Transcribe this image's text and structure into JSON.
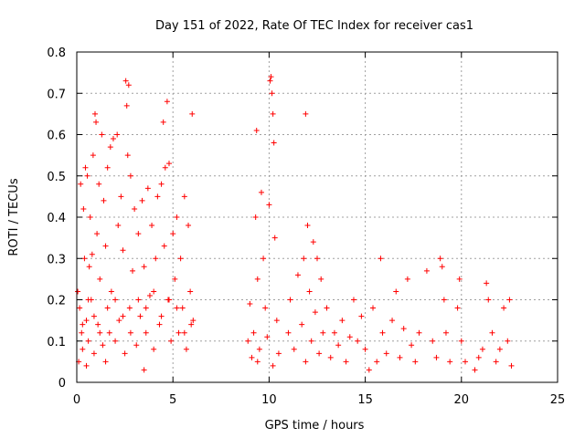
{
  "chart_data": {
    "type": "scatter",
    "title": "Day 151 of 2022, Rate Of TEC Index for receiver cas1",
    "xlabel": "GPS time / hours",
    "ylabel": "ROTI / TECUs",
    "xlim": [
      0,
      25
    ],
    "ylim": [
      0,
      0.8
    ],
    "xticks": [
      "0",
      "5",
      "10",
      "15",
      "20",
      "25"
    ],
    "yticks": [
      "0",
      "0.1",
      "0.2",
      "0.3",
      "0.4",
      "0.5",
      "0.6",
      "0.7",
      "0.8"
    ],
    "xtick_values": [
      0,
      5,
      10,
      15,
      20,
      25
    ],
    "ytick_values": [
      0,
      0.1,
      0.2,
      0.3,
      0.4,
      0.5,
      0.6,
      0.7,
      0.8
    ],
    "grid": true,
    "marker": "+",
    "series": [
      {
        "color": "#ff0000",
        "points": [
          [
            0.05,
            0.22
          ],
          [
            0.1,
            0.05
          ],
          [
            0.15,
            0.18
          ],
          [
            0.2,
            0.48
          ],
          [
            0.25,
            0.12
          ],
          [
            0.3,
            0.08
          ],
          [
            0.35,
            0.42
          ],
          [
            0.4,
            0.3
          ],
          [
            0.45,
            0.52
          ],
          [
            0.5,
            0.15
          ],
          [
            0.55,
            0.5
          ],
          [
            0.6,
            0.1
          ],
          [
            0.65,
            0.28
          ],
          [
            0.7,
            0.4
          ],
          [
            0.75,
            0.2
          ],
          [
            0.8,
            0.31
          ],
          [
            0.85,
            0.55
          ],
          [
            0.9,
            0.07
          ],
          [
            0.95,
            0.65
          ],
          [
            1.0,
            0.63
          ],
          [
            1.05,
            0.36
          ],
          [
            1.1,
            0.14
          ],
          [
            1.15,
            0.48
          ],
          [
            1.2,
            0.25
          ],
          [
            1.3,
            0.6
          ],
          [
            1.35,
            0.09
          ],
          [
            1.4,
            0.44
          ],
          [
            1.5,
            0.33
          ],
          [
            1.6,
            0.52
          ],
          [
            1.7,
            0.12
          ],
          [
            1.75,
            0.57
          ],
          [
            1.8,
            0.22
          ],
          [
            1.9,
            0.59
          ],
          [
            2.0,
            0.1
          ],
          [
            2.1,
            0.6
          ],
          [
            2.15,
            0.38
          ],
          [
            2.2,
            0.15
          ],
          [
            2.3,
            0.45
          ],
          [
            2.4,
            0.32
          ],
          [
            2.5,
            0.07
          ],
          [
            2.55,
            0.73
          ],
          [
            2.6,
            0.67
          ],
          [
            2.65,
            0.55
          ],
          [
            2.7,
            0.72
          ],
          [
            2.75,
            0.18
          ],
          [
            2.8,
            0.5
          ],
          [
            2.9,
            0.27
          ],
          [
            3.0,
            0.42
          ],
          [
            3.1,
            0.09
          ],
          [
            3.2,
            0.36
          ],
          [
            3.3,
            0.16
          ],
          [
            3.4,
            0.44
          ],
          [
            3.5,
            0.28
          ],
          [
            3.6,
            0.12
          ],
          [
            3.7,
            0.47
          ],
          [
            3.8,
            0.21
          ],
          [
            3.9,
            0.38
          ],
          [
            4.0,
            0.08
          ],
          [
            4.1,
            0.3
          ],
          [
            4.2,
            0.45
          ],
          [
            4.3,
            0.14
          ],
          [
            4.4,
            0.48
          ],
          [
            4.5,
            0.63
          ],
          [
            4.55,
            0.33
          ],
          [
            4.6,
            0.52
          ],
          [
            4.7,
            0.68
          ],
          [
            4.75,
            0.2
          ],
          [
            4.8,
            0.53
          ],
          [
            4.9,
            0.1
          ],
          [
            5.0,
            0.36
          ],
          [
            5.1,
            0.25
          ],
          [
            5.2,
            0.4
          ],
          [
            5.3,
            0.12
          ],
          [
            5.4,
            0.3
          ],
          [
            5.5,
            0.18
          ],
          [
            5.6,
            0.45
          ],
          [
            5.7,
            0.08
          ],
          [
            5.8,
            0.38
          ],
          [
            5.9,
            0.22
          ],
          [
            6.0,
            0.65
          ],
          [
            6.05,
            0.15
          ],
          [
            0.3,
            0.14
          ],
          [
            0.6,
            0.2
          ],
          [
            0.9,
            0.16
          ],
          [
            1.2,
            0.12
          ],
          [
            1.6,
            0.18
          ],
          [
            2.0,
            0.2
          ],
          [
            2.4,
            0.16
          ],
          [
            2.8,
            0.12
          ],
          [
            3.2,
            0.2
          ],
          [
            3.6,
            0.18
          ],
          [
            4.0,
            0.22
          ],
          [
            4.4,
            0.16
          ],
          [
            4.8,
            0.2
          ],
          [
            5.2,
            0.18
          ],
          [
            5.6,
            0.12
          ],
          [
            5.95,
            0.14
          ],
          [
            0.5,
            0.04
          ],
          [
            1.5,
            0.05
          ],
          [
            3.5,
            0.03
          ],
          [
            8.9,
            0.1
          ],
          [
            9.0,
            0.19
          ],
          [
            9.1,
            0.06
          ],
          [
            9.2,
            0.12
          ],
          [
            9.3,
            0.4
          ],
          [
            9.35,
            0.61
          ],
          [
            9.4,
            0.25
          ],
          [
            9.5,
            0.08
          ],
          [
            9.6,
            0.46
          ],
          [
            9.7,
            0.3
          ],
          [
            9.8,
            0.18
          ],
          [
            9.9,
            0.11
          ],
          [
            10.0,
            0.43
          ],
          [
            10.05,
            0.73
          ],
          [
            10.1,
            0.74
          ],
          [
            10.15,
            0.7
          ],
          [
            10.2,
            0.65
          ],
          [
            10.25,
            0.58
          ],
          [
            10.3,
            0.35
          ],
          [
            10.4,
            0.15
          ],
          [
            10.5,
            0.07
          ],
          [
            9.4,
            0.05
          ],
          [
            10.2,
            0.04
          ],
          [
            11.9,
            0.65
          ],
          [
            11.0,
            0.12
          ],
          [
            11.1,
            0.2
          ],
          [
            11.3,
            0.08
          ],
          [
            11.5,
            0.26
          ],
          [
            11.7,
            0.14
          ],
          [
            11.8,
            0.3
          ],
          [
            11.9,
            0.05
          ],
          [
            12.0,
            0.38
          ],
          [
            12.1,
            0.22
          ],
          [
            12.2,
            0.1
          ],
          [
            12.3,
            0.34
          ],
          [
            12.4,
            0.17
          ],
          [
            12.5,
            0.3
          ],
          [
            12.6,
            0.07
          ],
          [
            12.7,
            0.25
          ],
          [
            12.8,
            0.12
          ],
          [
            13.0,
            0.18
          ],
          [
            13.2,
            0.06
          ],
          [
            13.4,
            0.12
          ],
          [
            13.6,
            0.09
          ],
          [
            13.8,
            0.15
          ],
          [
            14.0,
            0.05
          ],
          [
            14.2,
            0.11
          ],
          [
            14.4,
            0.2
          ],
          [
            14.6,
            0.1
          ],
          [
            14.8,
            0.16
          ],
          [
            15.0,
            0.08
          ],
          [
            15.2,
            0.03
          ],
          [
            15.4,
            0.18
          ],
          [
            15.6,
            0.05
          ],
          [
            15.8,
            0.3
          ],
          [
            15.9,
            0.12
          ],
          [
            16.1,
            0.07
          ],
          [
            16.4,
            0.15
          ],
          [
            16.6,
            0.22
          ],
          [
            16.8,
            0.06
          ],
          [
            17.0,
            0.13
          ],
          [
            17.2,
            0.25
          ],
          [
            17.4,
            0.09
          ],
          [
            17.6,
            0.05
          ],
          [
            17.8,
            0.12
          ],
          [
            18.2,
            0.27
          ],
          [
            18.5,
            0.1
          ],
          [
            18.7,
            0.06
          ],
          [
            18.9,
            0.3
          ],
          [
            19.0,
            0.28
          ],
          [
            19.1,
            0.2
          ],
          [
            19.2,
            0.12
          ],
          [
            19.4,
            0.05
          ],
          [
            19.8,
            0.18
          ],
          [
            19.9,
            0.25
          ],
          [
            20.0,
            0.1
          ],
          [
            20.2,
            0.05
          ],
          [
            20.7,
            0.03
          ],
          [
            20.9,
            0.06
          ],
          [
            21.1,
            0.08
          ],
          [
            21.3,
            0.24
          ],
          [
            21.4,
            0.2
          ],
          [
            21.6,
            0.12
          ],
          [
            21.8,
            0.05
          ],
          [
            22.0,
            0.08
          ],
          [
            22.2,
            0.18
          ],
          [
            22.4,
            0.1
          ],
          [
            22.5,
            0.2
          ],
          [
            22.6,
            0.04
          ]
        ]
      }
    ]
  }
}
